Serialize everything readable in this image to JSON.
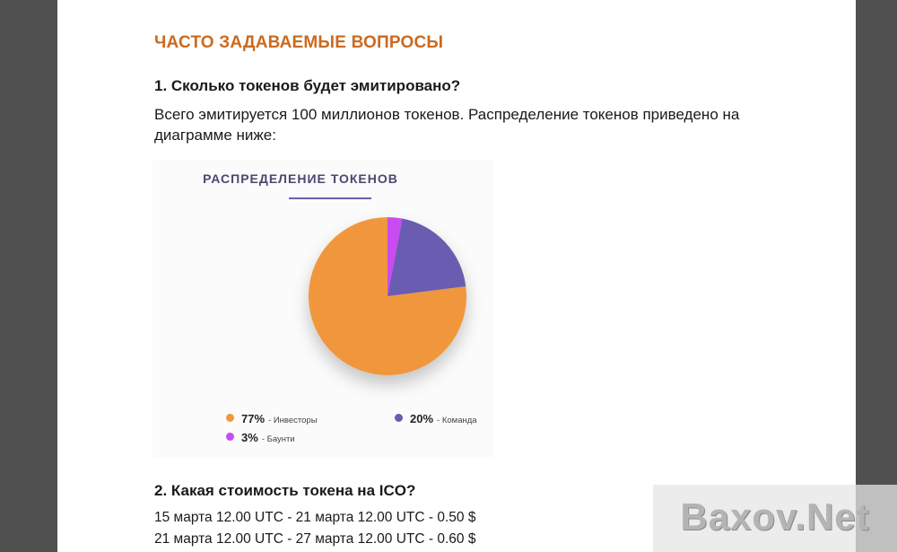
{
  "faq": {
    "heading": "ЧАСТО ЗАДАВАЕМЫЕ ВОПРОСЫ",
    "q1": {
      "question": "1.  Сколько токенов будет эмитировано?",
      "answer": "Всего эмитируется 100 миллионов токенов. Распределение токенов приведено на диаграмме ниже:"
    },
    "q2": {
      "question": "2.  Какая стоимость токена на ICO?",
      "prices": [
        "15 марта 12.00 UTC - 21 марта 12.00 UTC - 0.50 $",
        "21 марта 12.00 UTC - 27 марта 12.00 UTC - 0.60 $"
      ]
    }
  },
  "chart_data": {
    "type": "pie",
    "title": "РАСПРЕДЕЛЕНИЕ ТОКЕНОВ",
    "slices": [
      {
        "label": "Инвесторы",
        "value": 77,
        "display": "77%",
        "color": "#f0973e"
      },
      {
        "label": "Команда",
        "value": 20,
        "display": "20%",
        "color": "#6a5cb0"
      },
      {
        "label": "Баунти",
        "value": 3,
        "display": "3%",
        "color": "#c94cf2"
      }
    ],
    "legend_position": "bottom"
  },
  "watermark": {
    "text": "Baxov.Net"
  }
}
